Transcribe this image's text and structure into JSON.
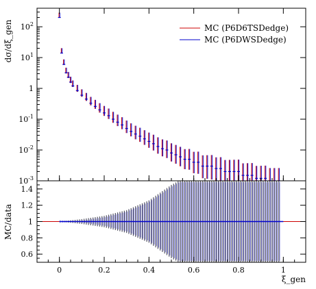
{
  "chart_data": [
    {
      "type": "scatter",
      "panel": "main",
      "xlabel": "ξ_gen",
      "ylabel": "dσ/dξ_gen",
      "xlim": [
        -0.1,
        1.1
      ],
      "ylim": [
        0.001,
        400
      ],
      "yscale": "log",
      "legend_position": "top-right",
      "xticks": [
        "0",
        "0.2",
        "0.4",
        "0.6",
        "0.8",
        "1"
      ],
      "yticks": [
        "10^2",
        "10^1",
        "1",
        "10^-1",
        "10^-2",
        "10^-3"
      ],
      "legend": [
        {
          "label": "MC (P6D6TSDedge)",
          "color": "#cc0000"
        },
        {
          "label": "MC (P6DWSDedge)",
          "color": "#0000cc"
        }
      ],
      "series_colors": [
        "#cc0000",
        "#0000cc"
      ],
      "x": [
        0.0,
        0.01,
        0.02,
        0.03,
        0.04,
        0.05,
        0.06,
        0.08,
        0.1,
        0.12,
        0.14,
        0.16,
        0.18,
        0.2,
        0.22,
        0.24,
        0.26,
        0.28,
        0.3,
        0.32,
        0.34,
        0.36,
        0.38,
        0.4,
        0.42,
        0.44,
        0.46,
        0.48,
        0.5,
        0.52,
        0.54,
        0.56,
        0.58,
        0.6,
        0.62,
        0.64,
        0.66,
        0.68,
        0.7,
        0.72,
        0.74,
        0.76,
        0.78,
        0.8,
        0.82,
        0.84,
        0.86,
        0.88,
        0.9,
        0.92,
        0.94,
        0.96,
        0.98
      ],
      "y": [
        200,
        14,
        6.0,
        3.2,
        2.3,
        1.6,
        1.2,
        0.85,
        0.6,
        0.45,
        0.33,
        0.26,
        0.2,
        0.16,
        0.13,
        0.1,
        0.08,
        0.065,
        0.05,
        0.04,
        0.033,
        0.028,
        0.023,
        0.019,
        0.016,
        0.013,
        0.011,
        0.01,
        0.008,
        0.007,
        0.006,
        0.005,
        0.005,
        0.004,
        0.004,
        0.003,
        0.003,
        0.003,
        0.0025,
        0.0025,
        0.002,
        0.002,
        0.002,
        0.002,
        0.0015,
        0.0015,
        0.0015,
        0.0012,
        0.0012,
        0.0012,
        0.001,
        0.001,
        0.001
      ]
    },
    {
      "type": "line",
      "panel": "ratio",
      "ylabel": "MC/data",
      "ylim": [
        0.5,
        1.5
      ],
      "yticks": [
        "1.4",
        "1.2",
        "1",
        "0.8",
        "0.6"
      ],
      "reference_value": 1.0,
      "x": [
        0.0,
        0.1,
        0.2,
        0.3,
        0.4,
        0.5,
        0.6,
        0.7,
        0.8,
        0.9,
        1.0
      ],
      "band_halfwidth": [
        0.0,
        0.03,
        0.07,
        0.14,
        0.26,
        0.45,
        0.6,
        0.6,
        0.6,
        0.6,
        0.6
      ]
    }
  ]
}
